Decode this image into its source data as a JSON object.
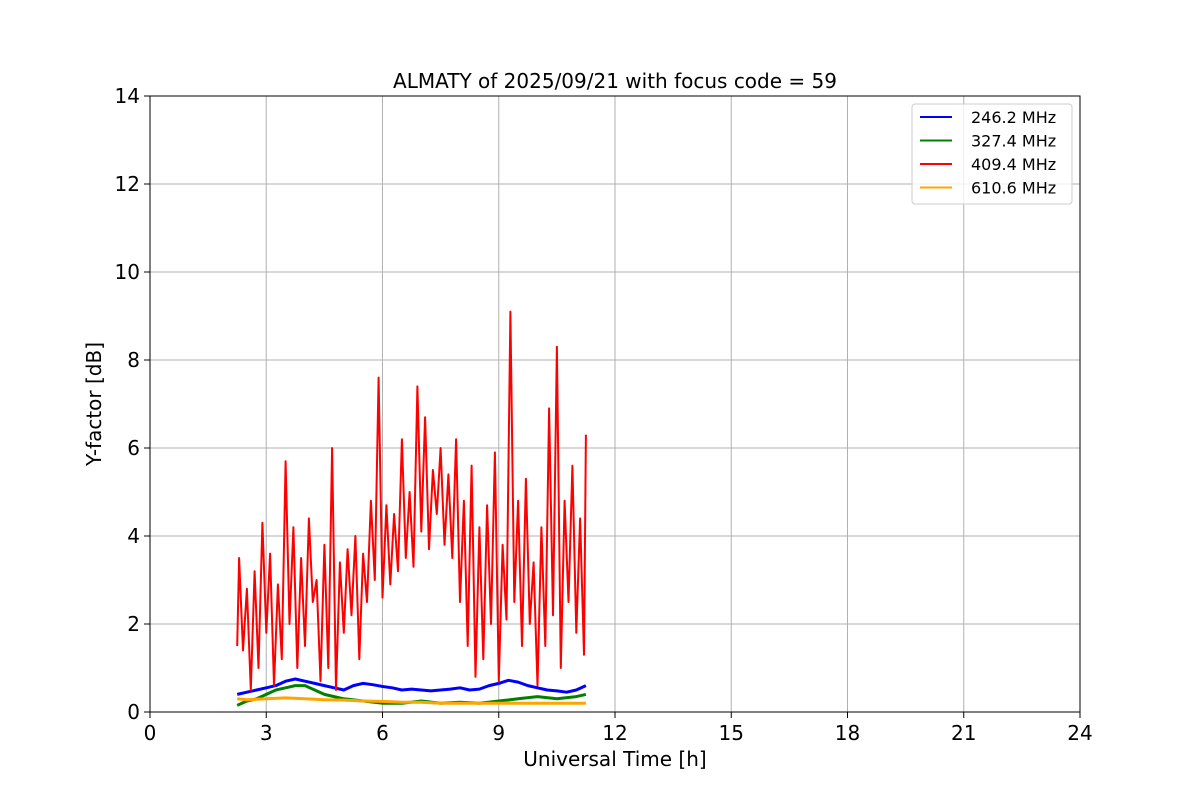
{
  "chart_data": {
    "type": "line",
    "title": "ALMATY of 2025/09/21 with focus code = 59",
    "xlabel": "Universal Time [h]",
    "ylabel": "Y-factor [dB]",
    "xlim": [
      0,
      24
    ],
    "ylim": [
      0,
      14
    ],
    "xticks": [
      0,
      3,
      6,
      9,
      12,
      15,
      18,
      21,
      24
    ],
    "yticks": [
      0,
      2,
      4,
      6,
      8,
      10,
      12,
      14
    ],
    "grid": true,
    "legend_position": "top-right",
    "series": [
      {
        "name": "246.2 MHz",
        "color": "#0000ff",
        "x": [
          2.25,
          2.5,
          2.75,
          3.0,
          3.25,
          3.5,
          3.75,
          4.0,
          4.25,
          4.5,
          4.75,
          5.0,
          5.25,
          5.5,
          5.75,
          6.0,
          6.25,
          6.5,
          6.75,
          7.0,
          7.25,
          7.5,
          7.75,
          8.0,
          8.25,
          8.5,
          8.75,
          9.0,
          9.25,
          9.5,
          9.75,
          10.0,
          10.25,
          10.5,
          10.75,
          11.0,
          11.25
        ],
        "y": [
          0.4,
          0.45,
          0.5,
          0.55,
          0.6,
          0.7,
          0.75,
          0.7,
          0.65,
          0.6,
          0.55,
          0.5,
          0.6,
          0.65,
          0.62,
          0.58,
          0.55,
          0.5,
          0.52,
          0.5,
          0.48,
          0.5,
          0.52,
          0.55,
          0.5,
          0.52,
          0.6,
          0.65,
          0.72,
          0.68,
          0.6,
          0.55,
          0.5,
          0.48,
          0.45,
          0.5,
          0.6
        ]
      },
      {
        "name": "327.4 MHz",
        "color": "#008000",
        "x": [
          2.25,
          2.5,
          2.75,
          3.0,
          3.25,
          3.5,
          3.75,
          4.0,
          4.25,
          4.5,
          4.75,
          5.0,
          5.5,
          6.0,
          6.5,
          7.0,
          7.5,
          8.0,
          8.5,
          9.0,
          9.5,
          10.0,
          10.5,
          11.0,
          11.25
        ],
        "y": [
          0.15,
          0.25,
          0.3,
          0.4,
          0.5,
          0.55,
          0.6,
          0.6,
          0.5,
          0.4,
          0.35,
          0.3,
          0.25,
          0.2,
          0.2,
          0.25,
          0.2,
          0.22,
          0.2,
          0.25,
          0.3,
          0.35,
          0.3,
          0.35,
          0.4
        ]
      },
      {
        "name": "409.4 MHz",
        "color": "#ff0000",
        "x": [
          2.25,
          2.3,
          2.4,
          2.5,
          2.6,
          2.7,
          2.8,
          2.9,
          3.0,
          3.1,
          3.2,
          3.3,
          3.4,
          3.5,
          3.6,
          3.7,
          3.8,
          3.9,
          4.0,
          4.1,
          4.2,
          4.3,
          4.4,
          4.5,
          4.6,
          4.7,
          4.8,
          4.9,
          5.0,
          5.1,
          5.2,
          5.3,
          5.4,
          5.5,
          5.6,
          5.7,
          5.8,
          5.9,
          6.0,
          6.1,
          6.2,
          6.3,
          6.4,
          6.5,
          6.6,
          6.7,
          6.8,
          6.9,
          7.0,
          7.1,
          7.2,
          7.3,
          7.4,
          7.5,
          7.6,
          7.7,
          7.8,
          7.9,
          8.0,
          8.1,
          8.2,
          8.3,
          8.4,
          8.5,
          8.6,
          8.7,
          8.8,
          8.9,
          9.0,
          9.1,
          9.2,
          9.3,
          9.4,
          9.5,
          9.6,
          9.7,
          9.8,
          9.9,
          10.0,
          10.1,
          10.2,
          10.3,
          10.4,
          10.5,
          10.6,
          10.7,
          10.8,
          10.9,
          11.0,
          11.1,
          11.2,
          11.25
        ],
        "y": [
          1.5,
          3.5,
          1.4,
          2.8,
          0.5,
          3.2,
          1.0,
          4.3,
          1.8,
          3.6,
          0.6,
          2.9,
          1.2,
          5.7,
          2.0,
          4.2,
          1.0,
          3.5,
          1.5,
          4.4,
          2.5,
          3.0,
          0.7,
          3.8,
          1.0,
          6.0,
          0.5,
          3.4,
          1.8,
          3.7,
          2.2,
          4.0,
          1.2,
          3.6,
          2.5,
          4.8,
          3.0,
          7.6,
          2.6,
          4.7,
          2.9,
          4.5,
          3.2,
          6.2,
          3.5,
          5.0,
          3.3,
          7.4,
          4.1,
          6.7,
          3.7,
          5.5,
          4.5,
          6.0,
          3.8,
          5.4,
          3.5,
          6.2,
          2.5,
          4.8,
          1.5,
          5.6,
          0.8,
          4.2,
          1.2,
          4.7,
          2.0,
          5.9,
          0.7,
          3.8,
          2.1,
          9.1,
          2.5,
          4.8,
          1.5,
          5.3,
          2.0,
          3.4,
          0.6,
          4.2,
          1.5,
          6.9,
          2.2,
          8.3,
          1.0,
          4.8,
          2.5,
          5.6,
          1.8,
          4.4,
          1.3,
          6.3
        ]
      },
      {
        "name": "610.6 MHz",
        "color": "#ffa500",
        "x": [
          2.25,
          2.5,
          3.0,
          3.5,
          4.0,
          4.5,
          5.0,
          5.5,
          6.0,
          6.5,
          7.0,
          7.5,
          8.0,
          8.5,
          9.0,
          9.5,
          10.0,
          10.5,
          11.0,
          11.25
        ],
        "y": [
          0.3,
          0.28,
          0.3,
          0.32,
          0.3,
          0.28,
          0.27,
          0.25,
          0.24,
          0.22,
          0.22,
          0.2,
          0.2,
          0.2,
          0.2,
          0.2,
          0.2,
          0.2,
          0.2,
          0.2
        ]
      }
    ]
  }
}
